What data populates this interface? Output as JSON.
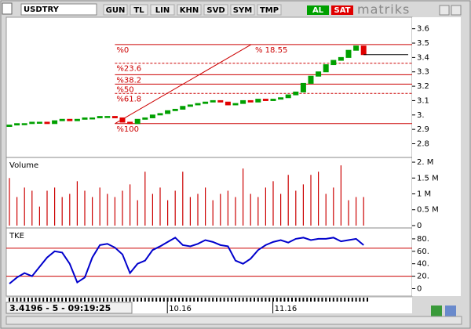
{
  "toolbar": {
    "symbol": "USDTRY",
    "buttons": [
      "GUN",
      "TL",
      "LIN",
      "KHN",
      "SVD",
      "SYM",
      "TMP"
    ],
    "buy": "AL",
    "sell": "SAT",
    "brand": "matriks"
  },
  "status": "3.4196 - 5 - 09:19:25",
  "date_labels": [
    {
      "label": "10.16",
      "at": 22
    },
    {
      "label": "11.16",
      "at": 36
    }
  ],
  "chart_data": [
    {
      "type": "candlestick",
      "up_color": "#00a000",
      "down_color": "#e00000",
      "series": [
        {
          "name": "USDTRY",
          "open": [
            2.92,
            2.93,
            2.94,
            2.94,
            2.95,
            2.95,
            2.94,
            2.96,
            2.97,
            2.96,
            2.97,
            2.98,
            2.98,
            2.99,
            2.99,
            2.98,
            2.95,
            2.94,
            2.97,
            2.98,
            3.0,
            3.01,
            3.03,
            3.04,
            3.06,
            3.07,
            3.08,
            3.09,
            3.1,
            3.09,
            3.07,
            3.08,
            3.1,
            3.09,
            3.11,
            3.1,
            3.11,
            3.12,
            3.14,
            3.16,
            3.22,
            3.27,
            3.3,
            3.35,
            3.38,
            3.4,
            3.45,
            3.48
          ],
          "close": [
            2.93,
            2.94,
            2.94,
            2.95,
            2.95,
            2.94,
            2.96,
            2.97,
            2.96,
            2.97,
            2.98,
            2.98,
            2.99,
            2.99,
            2.98,
            2.95,
            2.94,
            2.97,
            2.98,
            3.0,
            3.01,
            3.03,
            3.04,
            3.06,
            3.07,
            3.08,
            3.09,
            3.1,
            3.09,
            3.07,
            3.08,
            3.1,
            3.09,
            3.11,
            3.1,
            3.11,
            3.12,
            3.14,
            3.16,
            3.22,
            3.27,
            3.3,
            3.35,
            3.38,
            3.4,
            3.45,
            3.48,
            3.42
          ]
        }
      ],
      "ylim": [
        2.71,
        3.68
      ],
      "yticks": [
        3.6,
        3.5,
        3.4,
        3.3,
        3.2,
        3.1,
        {
          "value": 3,
          "label": "3."
        },
        2.9,
        2.8
      ],
      "fibonacci": {
        "color": "#cc0000",
        "move_label": "% 18.55",
        "levels": [
          {
            "label": "%0",
            "value": 3.49,
            "dashed": false
          },
          {
            "label": "%23.6",
            "value": 3.36,
            "dashed": true
          },
          {
            "label": "%38.2",
            "value": 3.28,
            "dashed": false
          },
          {
            "label": "%50",
            "value": 3.215,
            "dashed": false
          },
          {
            "label": "%61.8",
            "value": 3.15,
            "dashed": true
          },
          {
            "label": "%100",
            "value": 2.94,
            "dashed": false
          }
        ]
      }
    },
    {
      "type": "bar",
      "title": "Volume",
      "color": "#cc0000",
      "values": [
        1.5,
        0.9,
        1.2,
        1.1,
        0.6,
        1.1,
        1.2,
        0.9,
        1.0,
        1.4,
        1.1,
        0.9,
        1.2,
        1.0,
        0.9,
        1.1,
        1.3,
        0.8,
        1.7,
        1.0,
        1.2,
        0.8,
        1.1,
        1.7,
        0.9,
        1.0,
        1.2,
        0.8,
        1.0,
        1.1,
        0.9,
        1.8,
        1.0,
        0.9,
        1.2,
        1.4,
        1.0,
        1.6,
        1.1,
        1.3,
        1.6,
        1.7,
        1.0,
        1.2,
        1.9,
        0.8,
        0.9,
        0.9
      ],
      "ylim": [
        -0.05,
        2.1
      ],
      "yticks": [
        {
          "value": 2,
          "label": "2. M"
        },
        {
          "value": 1.5,
          "label": "1.5 M"
        },
        {
          "value": 1,
          "label": "1 M"
        },
        {
          "value": 0.5,
          "label": "0.5 M"
        },
        0
      ]
    },
    {
      "type": "line",
      "title": "TKE",
      "color": "#0000cc",
      "level_color": "#cc0000",
      "values": [
        8,
        18,
        25,
        20,
        35,
        50,
        60,
        58,
        40,
        10,
        18,
        50,
        70,
        72,
        66,
        55,
        25,
        40,
        45,
        62,
        68,
        75,
        82,
        70,
        68,
        72,
        78,
        75,
        70,
        68,
        45,
        40,
        48,
        62,
        70,
        75,
        78,
        74,
        80,
        82,
        78,
        80,
        80,
        82,
        76,
        78,
        80,
        70
      ],
      "levels": [
        65,
        20
      ],
      "ylim": [
        -12,
        95
      ],
      "yticks": [
        {
          "value": 80,
          "label": "80."
        },
        {
          "value": 60,
          "label": "60."
        },
        {
          "value": 40,
          "label": "40."
        },
        {
          "value": 20,
          "label": "20."
        },
        0
      ]
    }
  ]
}
